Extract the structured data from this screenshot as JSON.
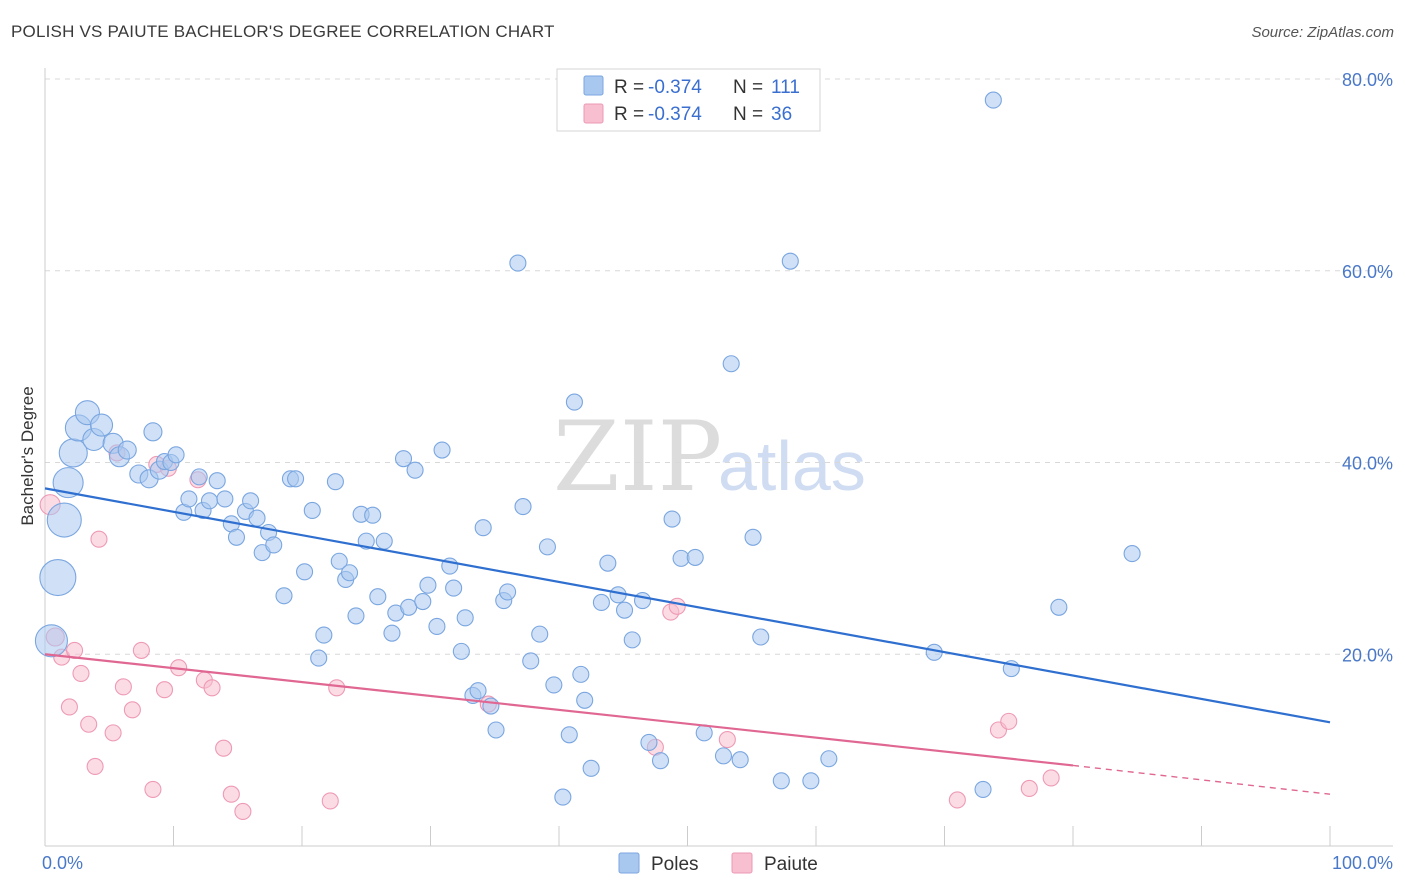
{
  "title": "POLISH VS PAIUTE BACHELOR'S DEGREE CORRELATION CHART",
  "source": "Source: ZipAtlas.com",
  "watermark": {
    "part1": "ZIP",
    "part2": "atlas"
  },
  "colors": {
    "poles_fill": "#a9c8f0",
    "poles_stroke": "#7aa6e0",
    "poles_line": "#2f6fd0",
    "paiute_fill": "#f7bfd0",
    "paiute_stroke": "#ee9ab5",
    "paiute_line": "#e06792",
    "tick_text": "#4a78c8",
    "grid": "#d8d8d8"
  },
  "legend": {
    "rows": [
      {
        "r_label": "R =",
        "r_value": "-0.374",
        "n_label": "N =",
        "n_value": "111"
      },
      {
        "r_label": "R =",
        "r_value": "-0.374",
        "n_label": "N =",
        "n_value": "36"
      }
    ],
    "bottom": [
      "Poles",
      "Paiute"
    ]
  },
  "chart_data": {
    "type": "scatter",
    "xlabel": "",
    "ylabel": "Bachelor's Degree",
    "xlim": [
      0,
      100
    ],
    "ylim": [
      0,
      80
    ],
    "x_tick_labels": [
      "0.0%",
      "100.0%"
    ],
    "y_ticks": [
      20,
      40,
      60,
      80
    ],
    "y_tick_labels": [
      "20.0%",
      "40.0%",
      "60.0%",
      "80.0%"
    ],
    "series": [
      {
        "name": "Poles",
        "trend": {
          "x0": 0,
          "y0": 37.3,
          "x1": 100,
          "y1": 12.9
        },
        "points": [
          [
            0.5,
            21.4,
            16
          ],
          [
            1.0,
            28.0,
            18
          ],
          [
            1.5,
            34.0,
            17
          ],
          [
            1.8,
            37.9,
            15
          ],
          [
            2.2,
            41.0,
            14
          ],
          [
            2.6,
            43.6,
            13
          ],
          [
            3.3,
            45.2,
            12
          ],
          [
            3.8,
            42.4,
            11
          ],
          [
            4.4,
            43.9,
            11
          ],
          [
            5.3,
            42.0,
            10
          ],
          [
            5.8,
            40.6,
            10
          ],
          [
            6.4,
            41.3,
            9
          ],
          [
            7.3,
            38.8,
            9
          ],
          [
            8.1,
            38.3,
            9
          ],
          [
            8.4,
            43.2,
            9
          ],
          [
            8.9,
            39.2,
            9
          ],
          [
            9.3,
            40.1,
            8
          ],
          [
            9.8,
            40.0,
            8
          ],
          [
            10.2,
            40.8,
            8
          ],
          [
            10.8,
            34.8,
            8
          ],
          [
            11.2,
            36.2,
            8
          ],
          [
            12.0,
            38.5,
            8
          ],
          [
            12.3,
            35.0,
            8
          ],
          [
            12.8,
            36.0,
            8
          ],
          [
            13.4,
            38.1,
            8
          ],
          [
            14.0,
            36.2,
            8
          ],
          [
            14.5,
            33.6,
            8
          ],
          [
            14.9,
            32.2,
            8
          ],
          [
            15.6,
            34.9,
            8
          ],
          [
            16.0,
            36.0,
            8
          ],
          [
            16.5,
            34.2,
            8
          ],
          [
            16.9,
            30.6,
            8
          ],
          [
            17.4,
            32.7,
            8
          ],
          [
            17.8,
            31.4,
            8
          ],
          [
            18.6,
            26.1,
            8
          ],
          [
            19.1,
            38.3,
            8
          ],
          [
            19.5,
            38.3,
            8
          ],
          [
            20.2,
            28.6,
            8
          ],
          [
            20.8,
            35.0,
            8
          ],
          [
            21.3,
            19.6,
            8
          ],
          [
            21.7,
            22.0,
            8
          ],
          [
            22.6,
            38.0,
            8
          ],
          [
            22.9,
            29.7,
            8
          ],
          [
            23.4,
            27.8,
            8
          ],
          [
            23.7,
            28.5,
            8
          ],
          [
            24.2,
            24.0,
            8
          ],
          [
            24.6,
            34.6,
            8
          ],
          [
            25.0,
            31.8,
            8
          ],
          [
            25.5,
            34.5,
            8
          ],
          [
            25.9,
            26.0,
            8
          ],
          [
            26.4,
            31.8,
            8
          ],
          [
            27.0,
            22.2,
            8
          ],
          [
            27.3,
            24.3,
            8
          ],
          [
            27.9,
            40.4,
            8
          ],
          [
            28.3,
            24.9,
            8
          ],
          [
            28.8,
            39.2,
            8
          ],
          [
            29.4,
            25.5,
            8
          ],
          [
            29.8,
            27.2,
            8
          ],
          [
            30.5,
            22.9,
            8
          ],
          [
            30.9,
            41.3,
            8
          ],
          [
            31.5,
            29.2,
            8
          ],
          [
            31.8,
            26.9,
            8
          ],
          [
            32.4,
            20.3,
            8
          ],
          [
            32.7,
            23.8,
            8
          ],
          [
            33.3,
            15.7,
            8
          ],
          [
            33.7,
            16.2,
            8
          ],
          [
            34.1,
            33.2,
            8
          ],
          [
            34.7,
            14.6,
            8
          ],
          [
            35.1,
            12.1,
            8
          ],
          [
            35.7,
            25.6,
            8
          ],
          [
            36.0,
            26.5,
            8
          ],
          [
            36.8,
            60.8,
            8
          ],
          [
            37.2,
            35.4,
            8
          ],
          [
            37.8,
            19.3,
            8
          ],
          [
            38.5,
            22.1,
            8
          ],
          [
            39.1,
            31.2,
            8
          ],
          [
            39.6,
            16.8,
            8
          ],
          [
            40.3,
            5.1,
            8
          ],
          [
            40.8,
            11.6,
            8
          ],
          [
            41.2,
            46.3,
            8
          ],
          [
            41.7,
            17.9,
            8
          ],
          [
            42.0,
            15.2,
            8
          ],
          [
            42.5,
            8.1,
            8
          ],
          [
            43.3,
            25.4,
            8
          ],
          [
            43.8,
            29.5,
            8
          ],
          [
            44.6,
            26.2,
            8
          ],
          [
            45.1,
            24.6,
            8
          ],
          [
            45.7,
            21.5,
            8
          ],
          [
            46.5,
            25.6,
            8
          ],
          [
            47.0,
            10.8,
            8
          ],
          [
            47.9,
            8.9,
            8
          ],
          [
            48.8,
            34.1,
            8
          ],
          [
            49.5,
            30.0,
            8
          ],
          [
            50.6,
            30.1,
            8
          ],
          [
            51.3,
            11.8,
            8
          ],
          [
            52.8,
            9.4,
            8
          ],
          [
            53.4,
            50.3,
            8
          ],
          [
            54.1,
            9.0,
            8
          ],
          [
            55.1,
            32.2,
            8
          ],
          [
            55.7,
            21.8,
            8
          ],
          [
            57.3,
            6.8,
            8
          ],
          [
            58.0,
            61.0,
            8
          ],
          [
            59.6,
            6.8,
            8
          ],
          [
            61.0,
            9.1,
            8
          ],
          [
            69.2,
            20.2,
            8
          ],
          [
            73.0,
            5.9,
            8
          ],
          [
            73.8,
            77.8,
            8
          ],
          [
            75.2,
            18.5,
            8
          ],
          [
            78.9,
            24.9,
            8
          ],
          [
            84.6,
            30.5,
            8
          ]
        ]
      },
      {
        "name": "Paiute",
        "trend": {
          "x0": 0,
          "y0": 20.0,
          "x1": 80,
          "y1": 8.4
        },
        "trend_dashed_to": {
          "x": 100,
          "y": 5.4
        },
        "points": [
          [
            0.4,
            35.6,
            10
          ],
          [
            0.8,
            21.8,
            9
          ],
          [
            1.3,
            19.7,
            8
          ],
          [
            1.9,
            14.5,
            8
          ],
          [
            2.3,
            20.4,
            8
          ],
          [
            2.8,
            18.0,
            8
          ],
          [
            3.4,
            12.7,
            8
          ],
          [
            3.9,
            8.3,
            8
          ],
          [
            4.2,
            32.0,
            8
          ],
          [
            5.3,
            11.8,
            8
          ],
          [
            5.6,
            41.0,
            8
          ],
          [
            6.1,
            16.6,
            8
          ],
          [
            6.8,
            14.2,
            8
          ],
          [
            7.5,
            20.4,
            8
          ],
          [
            8.4,
            5.9,
            8
          ],
          [
            8.7,
            39.8,
            8
          ],
          [
            9.3,
            16.3,
            8
          ],
          [
            9.6,
            39.4,
            8
          ],
          [
            10.4,
            18.6,
            8
          ],
          [
            11.9,
            38.2,
            8
          ],
          [
            12.4,
            17.3,
            8
          ],
          [
            13.0,
            16.5,
            8
          ],
          [
            13.9,
            10.2,
            8
          ],
          [
            14.5,
            5.4,
            8
          ],
          [
            15.4,
            3.6,
            8
          ],
          [
            22.2,
            4.7,
            8
          ],
          [
            22.7,
            16.5,
            8
          ],
          [
            34.5,
            14.8,
            8
          ],
          [
            47.5,
            10.3,
            8
          ],
          [
            48.7,
            24.4,
            8
          ],
          [
            49.2,
            25.0,
            8
          ],
          [
            53.1,
            11.1,
            8
          ],
          [
            71.0,
            4.8,
            8
          ],
          [
            74.2,
            12.1,
            8
          ],
          [
            75.0,
            13.0,
            8
          ],
          [
            76.6,
            6.0,
            8
          ],
          [
            78.3,
            7.1,
            8
          ]
        ]
      }
    ]
  }
}
